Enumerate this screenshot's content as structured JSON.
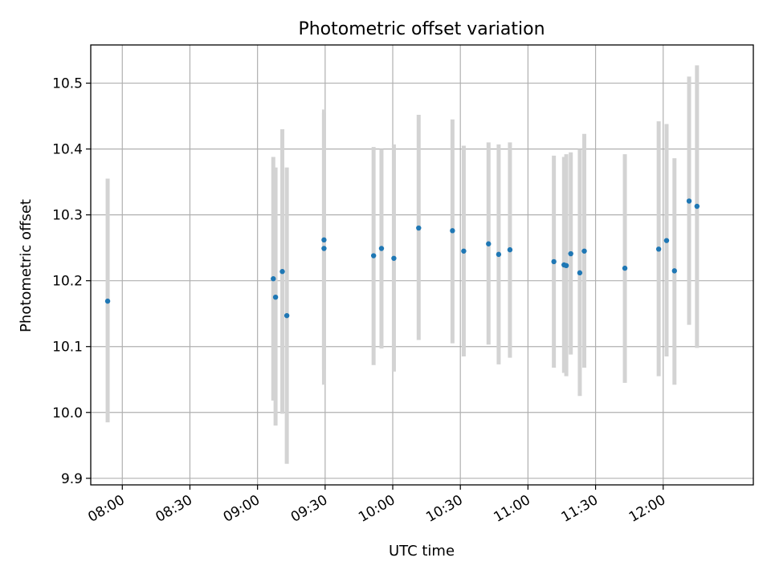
{
  "chart_data": {
    "type": "scatter",
    "title": "Photometric offset variation",
    "xlabel": "UTC time",
    "ylabel": "Photometric offset",
    "xlim": [
      "07:46",
      "12:40"
    ],
    "ylim": [
      9.89,
      10.558
    ],
    "grid": true,
    "colors": {
      "points": "#1f77b4",
      "error_bars": "#d3d3d3",
      "grid": "#b0b0b0"
    },
    "x_ticks": [
      {
        "t": "08:00",
        "label": "08:00"
      },
      {
        "t": "08:30",
        "label": "08:30"
      },
      {
        "t": "09:00",
        "label": "09:00"
      },
      {
        "t": "09:30",
        "label": "09:30"
      },
      {
        "t": "10:00",
        "label": "10:00"
      },
      {
        "t": "10:30",
        "label": "10:30"
      },
      {
        "t": "11:00",
        "label": "11:00"
      },
      {
        "t": "11:30",
        "label": "11:30"
      },
      {
        "t": "12:00",
        "label": "12:00"
      }
    ],
    "y_ticks": [
      {
        "v": 9.9,
        "label": "9.9"
      },
      {
        "v": 10.0,
        "label": "10.0"
      },
      {
        "v": 10.1,
        "label": "10.1"
      },
      {
        "v": 10.2,
        "label": "10.2"
      },
      {
        "v": 10.3,
        "label": "10.3"
      },
      {
        "v": 10.4,
        "label": "10.4"
      },
      {
        "v": 10.5,
        "label": "10.5"
      }
    ],
    "points": [
      {
        "t": "07:53:30",
        "y": 10.169,
        "lo": 9.985,
        "hi": 10.355
      },
      {
        "t": "09:07:00",
        "y": 10.203,
        "lo": 10.018,
        "hi": 10.388
      },
      {
        "t": "09:08:00",
        "y": 10.175,
        "lo": 9.98,
        "hi": 10.372
      },
      {
        "t": "09:11:00",
        "y": 10.214,
        "lo": 9.998,
        "hi": 10.43
      },
      {
        "t": "09:13:00",
        "y": 10.147,
        "lo": 9.922,
        "hi": 10.372
      },
      {
        "t": "09:29:30",
        "y": 10.262,
        "lo": 10.065,
        "hi": 10.46
      },
      {
        "t": "09:29:30",
        "y": 10.249,
        "lo": 10.042,
        "hi": 10.455
      },
      {
        "t": "09:51:30",
        "y": 10.238,
        "lo": 10.072,
        "hi": 10.403
      },
      {
        "t": "09:55:00",
        "y": 10.249,
        "lo": 10.097,
        "hi": 10.4
      },
      {
        "t": "10:00:30",
        "y": 10.234,
        "lo": 10.062,
        "hi": 10.407
      },
      {
        "t": "10:11:30",
        "y": 10.28,
        "lo": 10.11,
        "hi": 10.452
      },
      {
        "t": "10:26:30",
        "y": 10.276,
        "lo": 10.105,
        "hi": 10.445
      },
      {
        "t": "10:31:30",
        "y": 10.245,
        "lo": 10.085,
        "hi": 10.405
      },
      {
        "t": "10:42:30",
        "y": 10.256,
        "lo": 10.103,
        "hi": 10.41
      },
      {
        "t": "10:47:00",
        "y": 10.24,
        "lo": 10.073,
        "hi": 10.407
      },
      {
        "t": "10:52:00",
        "y": 10.247,
        "lo": 10.083,
        "hi": 10.41
      },
      {
        "t": "11:11:30",
        "y": 10.229,
        "lo": 10.068,
        "hi": 10.39
      },
      {
        "t": "11:16:00",
        "y": 10.224,
        "lo": 10.06,
        "hi": 10.388
      },
      {
        "t": "11:17:00",
        "y": 10.223,
        "lo": 10.055,
        "hi": 10.392
      },
      {
        "t": "11:19:00",
        "y": 10.241,
        "lo": 10.088,
        "hi": 10.395
      },
      {
        "t": "11:23:00",
        "y": 10.212,
        "lo": 10.025,
        "hi": 10.4
      },
      {
        "t": "11:25:00",
        "y": 10.245,
        "lo": 10.068,
        "hi": 10.423
      },
      {
        "t": "11:43:00",
        "y": 10.219,
        "lo": 10.045,
        "hi": 10.392
      },
      {
        "t": "11:58:00",
        "y": 10.248,
        "lo": 10.055,
        "hi": 10.442
      },
      {
        "t": "12:01:30",
        "y": 10.261,
        "lo": 10.085,
        "hi": 10.438
      },
      {
        "t": "12:05:00",
        "y": 10.215,
        "lo": 10.042,
        "hi": 10.386
      },
      {
        "t": "12:11:30",
        "y": 10.321,
        "lo": 10.133,
        "hi": 10.51
      },
      {
        "t": "12:15:00",
        "y": 10.313,
        "lo": 10.098,
        "hi": 10.527
      }
    ]
  }
}
